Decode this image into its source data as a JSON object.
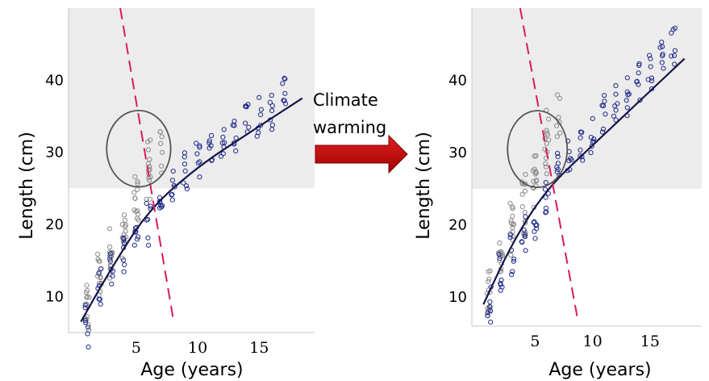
{
  "annotation": "Climate warming",
  "chart_data": [
    {
      "type": "scatter",
      "xlabel": "Age (years)",
      "ylabel": "Length (cm)",
      "xticks": [
        5,
        10,
        15
      ],
      "yticks": [
        10,
        20,
        30,
        40
      ],
      "xlim": [
        -0.5,
        19.5
      ],
      "ylim": [
        5,
        50
      ],
      "highlight_band_ylim": [
        25,
        50
      ],
      "series": [
        {
          "marker_color": "#8a8a8a",
          "marker": "open-circle",
          "points": [
            [
              1,
              8
            ],
            [
              1,
              9
            ],
            [
              2,
              12
            ],
            [
              2,
              14
            ],
            [
              3,
              15
            ],
            [
              3,
              18
            ],
            [
              4,
              18
            ],
            [
              4,
              20
            ],
            [
              5,
              22
            ],
            [
              5,
              24
            ],
            [
              6,
              26
            ],
            [
              6,
              29
            ],
            [
              7,
              30
            ]
          ]
        },
        {
          "marker_color": "#1f2a8c",
          "marker": "open-circle",
          "points": [
            [
              1,
              6
            ],
            [
              2,
              11
            ],
            [
              3,
              13
            ],
            [
              4,
              16
            ],
            [
              5,
              18
            ],
            [
              6,
              20
            ],
            [
              7,
              23
            ],
            [
              8,
              25
            ],
            [
              9,
              27
            ],
            [
              10,
              29
            ],
            [
              11,
              30
            ],
            [
              12,
              31
            ],
            [
              13,
              32
            ],
            [
              14,
              34
            ],
            [
              15,
              35
            ],
            [
              16,
              36
            ],
            [
              17,
              38
            ]
          ]
        }
      ],
      "fit_line": {
        "color": "#15154a",
        "x": [
          0.5,
          3,
          6,
          10,
          14,
          18.5
        ],
        "y": [
          6.5,
          14,
          22,
          28,
          32.5,
          37.5
        ]
      },
      "dashed_line": {
        "color": "#d81b5a",
        "x": [
          3.7,
          8
        ],
        "y": [
          50,
          7
        ]
      },
      "circle": {
        "cx": 5.2,
        "cy": 30.5,
        "rx": 2.6,
        "ry": 5.3,
        "color": "#555555"
      }
    },
    {
      "type": "scatter",
      "xlabel": "Age (years)",
      "ylabel": "Length (cm)",
      "xticks": [
        5,
        10,
        15
      ],
      "yticks": [
        10,
        20,
        30,
        40
      ],
      "xlim": [
        -0.5,
        19.5
      ],
      "ylim": [
        6,
        50
      ],
      "highlight_band_ylim": [
        25,
        50
      ],
      "series": [
        {
          "marker_color": "#8a8a8a",
          "marker": "open-circle",
          "points": [
            [
              1,
              10
            ],
            [
              1,
              12
            ],
            [
              2,
              14
            ],
            [
              2,
              16
            ],
            [
              3,
              18
            ],
            [
              3,
              20
            ],
            [
              4,
              21
            ],
            [
              4,
              24
            ],
            [
              5,
              25
            ],
            [
              5,
              28
            ],
            [
              6,
              30
            ],
            [
              6,
              33
            ],
            [
              7,
              35
            ]
          ]
        },
        {
          "marker_color": "#1f2a8c",
          "marker": "open-circle",
          "points": [
            [
              1,
              9
            ],
            [
              2,
              13
            ],
            [
              3,
              16
            ],
            [
              4,
              19
            ],
            [
              5,
              21
            ],
            [
              6,
              24
            ],
            [
              7,
              27
            ],
            [
              8,
              29
            ],
            [
              9,
              31
            ],
            [
              10,
              33
            ],
            [
              11,
              35
            ],
            [
              12,
              37
            ],
            [
              13,
              38
            ],
            [
              14,
              40
            ],
            [
              15,
              41
            ],
            [
              16,
              43
            ],
            [
              17,
              45
            ]
          ]
        }
      ],
      "fit_line": {
        "color": "#15154a",
        "x": [
          0.5,
          3,
          6,
          10,
          14,
          18
        ],
        "y": [
          9,
          17.5,
          25,
          31,
          37,
          43
        ]
      },
      "dashed_line": {
        "color": "#d81b5a",
        "x": [
          3.7,
          8.7
        ],
        "y": [
          50,
          7
        ]
      },
      "circle": {
        "cx": 5.2,
        "cy": 30.5,
        "rx": 2.6,
        "ry": 5.3,
        "color": "#555555"
      }
    }
  ]
}
